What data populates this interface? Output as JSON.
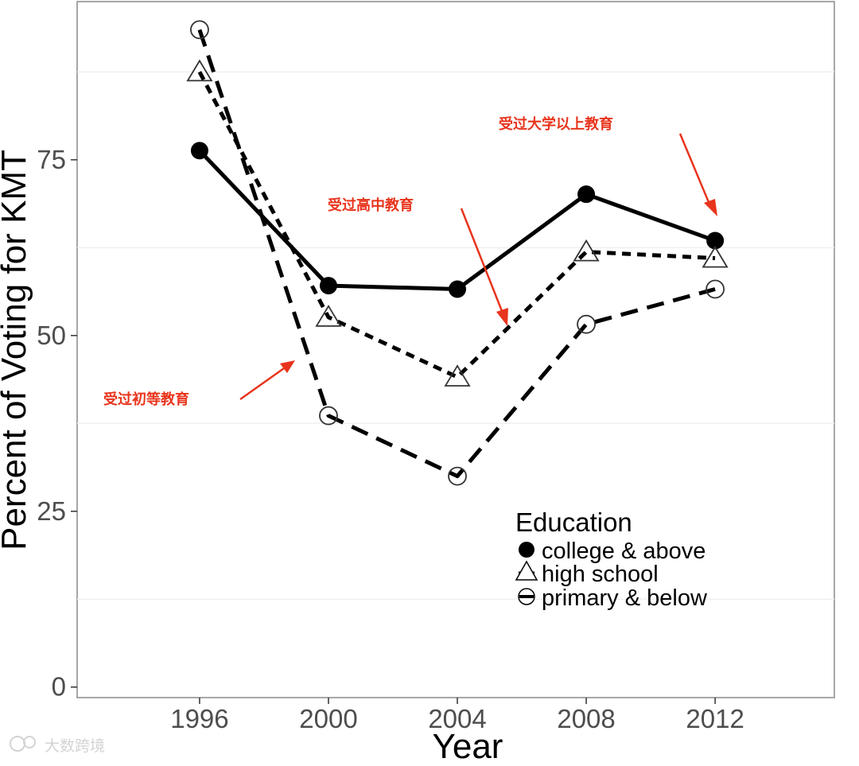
{
  "chart_data": {
    "type": "line",
    "xlabel": "Year",
    "ylabel": "Percent of Voting for KMT",
    "x": [
      1996,
      2000,
      2004,
      2008,
      2012
    ],
    "xlim": [
      1992.2,
      2015.7
    ],
    "ylim": [
      -1.5,
      97.5
    ],
    "yticks": [
      0,
      25,
      50,
      75
    ],
    "ygrid_minor": [
      12.5,
      37.5,
      62.5,
      87.5
    ],
    "grid": "minor y only",
    "series": [
      {
        "name": "college & above",
        "values": [
          76.3,
          57.1,
          56.6,
          70.1,
          63.5
        ],
        "marker": "filled-circle",
        "linestyle": "solid",
        "color": "#000000"
      },
      {
        "name": "high school",
        "values": [
          87.5,
          52.6,
          44.1,
          61.9,
          61.0
        ],
        "marker": "open-triangle",
        "linestyle": "dotted",
        "color": "#000000"
      },
      {
        "name": "primary & below",
        "values": [
          93.5,
          38.6,
          30.0,
          51.6,
          56.6
        ],
        "marker": "open-circle",
        "linestyle": "dashed",
        "color": "#000000"
      }
    ],
    "legend": {
      "title": "Education",
      "placement": "bottom-right inside"
    },
    "annotations": [
      {
        "text": "受过大学以上教育",
        "color": "#e8341c",
        "points_to": "college & above"
      },
      {
        "text": "受过高中教育",
        "color": "#e8341c",
        "points_to": "high school"
      },
      {
        "text": "受过初等教育",
        "color": "#e8341c",
        "points_to": "primary & below"
      }
    ]
  },
  "watermark": {
    "text": "大数跨境",
    "icon": "chat-bubble-icon"
  }
}
